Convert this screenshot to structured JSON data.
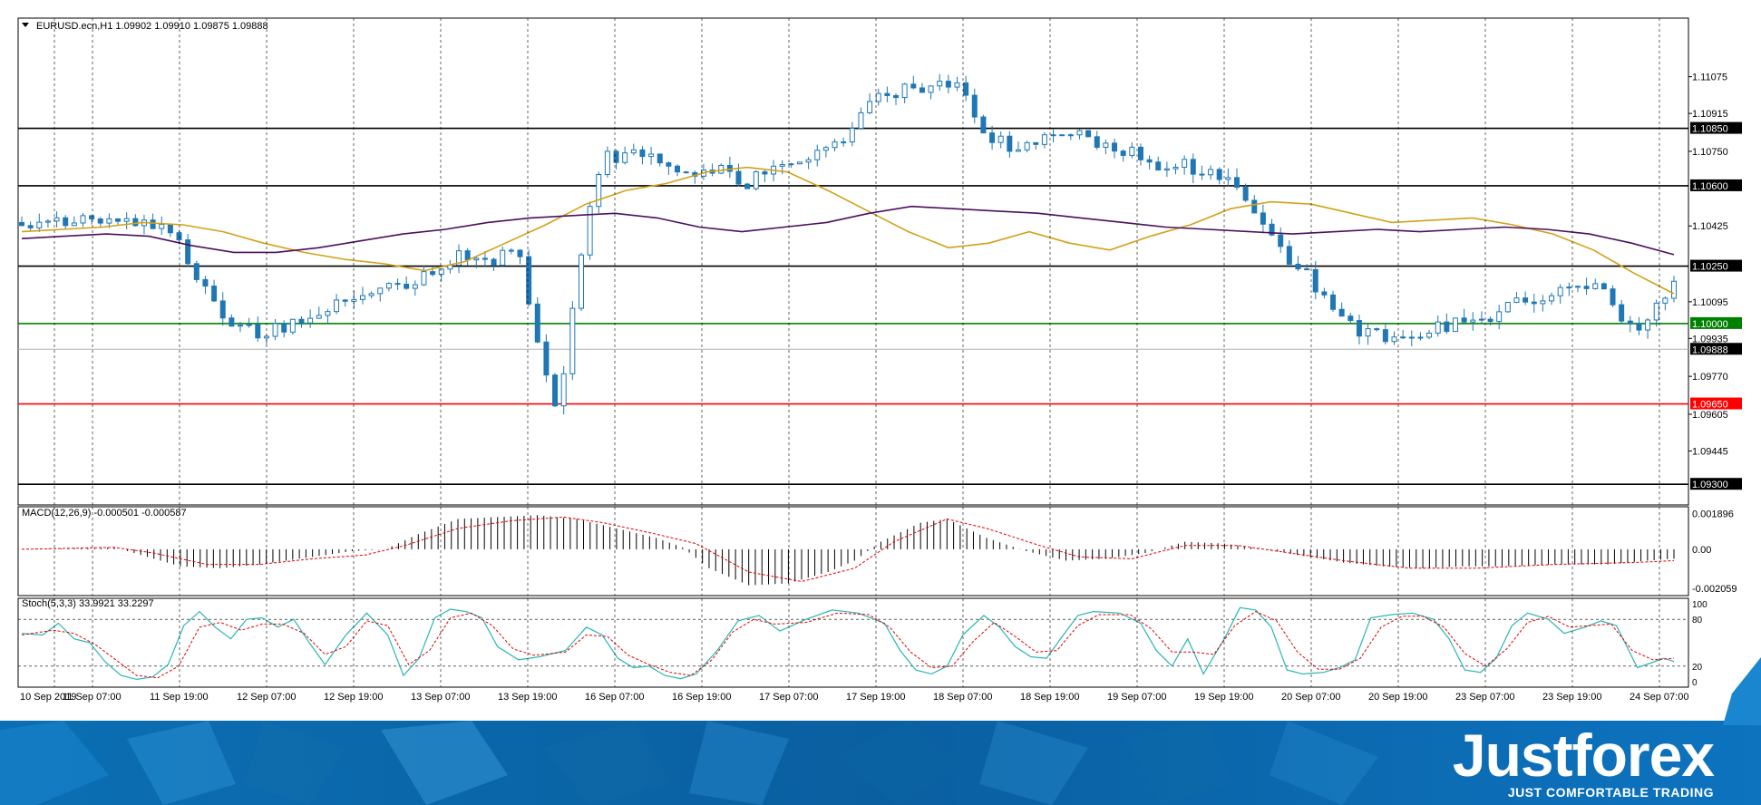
{
  "header": {
    "symbol_line": "EURUSD.ecn,H1  1.09902 1.09910 1.09875 1.09888"
  },
  "chart_data": {
    "type": "candlestick",
    "price_axis": {
      "range": [
        1.0921,
        1.1133
      ],
      "ticks": [
        "1.11075",
        "1.10915",
        "1.10750",
        "1.10425",
        "1.10095",
        "1.09935",
        "1.09770",
        "1.09605",
        "1.09445"
      ]
    },
    "levels": [
      {
        "value": 1.1085,
        "label": "1.10850",
        "color": "#000000"
      },
      {
        "value": 1.106,
        "label": "1.10600",
        "color": "#000000"
      },
      {
        "value": 1.1025,
        "label": "1.10250",
        "color": "#000000"
      },
      {
        "value": 1.1,
        "label": "1.10000",
        "color": "#008000"
      },
      {
        "value": 1.0965,
        "label": "1.09650",
        "color": "#ff0000"
      },
      {
        "value": 1.093,
        "label": "1.09300",
        "color": "#000000"
      }
    ],
    "current_price": {
      "value": 1.09888,
      "label": "1.09888"
    },
    "candle_count": 190,
    "candle_anchors": [
      [
        0,
        1.1044
      ],
      [
        10,
        1.1046
      ],
      [
        16,
        1.1041
      ],
      [
        19,
        1.1018
      ],
      [
        22,
        1.1
      ],
      [
        26,
        1.0995
      ],
      [
        31,
        1.1005
      ],
      [
        36,
        1.1012
      ],
      [
        40,
        1.1016
      ],
      [
        44,
        1.1023
      ],
      [
        47,
        1.103
      ],
      [
        50,
        1.1027
      ],
      [
        53,
        1.1033
      ],
      [
        55,
        1.0988
      ],
      [
        57,
        1.0964
      ],
      [
        58,
        1.0986
      ],
      [
        60,
        1.104
      ],
      [
        62,
        1.1073
      ],
      [
        64,
        1.1072
      ],
      [
        66,
        1.1074
      ],
      [
        68,
        1.107
      ],
      [
        72,
        1.1066
      ],
      [
        75,
        1.1068
      ],
      [
        77,
        1.1061
      ],
      [
        80,
        1.1068
      ],
      [
        84,
        1.1072
      ],
      [
        87,
        1.1077
      ],
      [
        89,
        1.1087
      ],
      [
        91,
        1.1099
      ],
      [
        94,
        1.1102
      ],
      [
        97,
        1.1102
      ],
      [
        98,
        1.1108
      ],
      [
        100,
        1.1102
      ],
      [
        102,
        1.1085
      ],
      [
        105,
        1.1077
      ],
      [
        108,
        1.1077
      ],
      [
        111,
        1.1085
      ],
      [
        114,
        1.1079
      ],
      [
        118,
        1.1075
      ],
      [
        121,
        1.1068
      ],
      [
        123,
        1.1071
      ],
      [
        126,
        1.1066
      ],
      [
        129,
        1.106
      ],
      [
        131,
        1.1053
      ],
      [
        134,
        1.1031
      ],
      [
        137,
        1.1021
      ],
      [
        140,
        1.1005
      ],
      [
        143,
        1.0995
      ],
      [
        147,
        1.0993
      ],
      [
        150,
        1.0998
      ],
      [
        154,
        1.1001
      ],
      [
        157,
        1.1004
      ],
      [
        160,
        1.101
      ],
      [
        163,
        1.1012
      ],
      [
        166,
        1.1015
      ],
      [
        168,
        1.1019
      ],
      [
        171,
        1.0999
      ],
      [
        173,
        1.0998
      ],
      [
        176,
        1.1019
      ]
    ],
    "x_axis_labels": [
      "10 Sep 2019",
      "11 Sep 07:00",
      "11 Sep 19:00",
      "12 Sep 07:00",
      "12 Sep 19:00",
      "13 Sep 07:00",
      "13 Sep 19:00",
      "16 Sep 07:00",
      "16 Sep 19:00",
      "17 Sep 07:00",
      "17 Sep 19:00",
      "18 Sep 07:00",
      "18 Sep 19:00",
      "19 Sep 07:00",
      "19 Sep 19:00",
      "20 Sep 07:00",
      "20 Sep 19:00",
      "23 Sep 07:00",
      "23 Sep 19:00",
      "24 Sep 07:00"
    ],
    "moving_averages": [
      {
        "color": "#d4a017",
        "values": [
          1.104,
          1.1041,
          1.1042,
          1.1044,
          1.1043,
          1.104,
          1.1035,
          1.1031,
          1.1028,
          1.1026,
          1.1023,
          1.1027,
          1.1035,
          1.1043,
          1.1052,
          1.1058,
          1.1061,
          1.1066,
          1.1068,
          1.1066,
          1.1058,
          1.1049,
          1.104,
          1.1033,
          1.1035,
          1.104,
          1.1035,
          1.1032,
          1.1038,
          1.1043,
          1.105,
          1.1053,
          1.1052,
          1.1048,
          1.1044,
          1.1045,
          1.1046,
          1.1043,
          1.1039,
          1.1032,
          1.1022,
          1.1013
        ]
      },
      {
        "color": "#4b0f5e",
        "values": [
          1.1037,
          1.1038,
          1.1039,
          1.1038,
          1.1034,
          1.1031,
          1.1031,
          1.1033,
          1.1036,
          1.1039,
          1.1041,
          1.1044,
          1.1046,
          1.1047,
          1.1048,
          1.1046,
          1.1042,
          1.104,
          1.1042,
          1.1044,
          1.1048,
          1.1051,
          1.105,
          1.1049,
          1.1048,
          1.1046,
          1.1044,
          1.1042,
          1.1041,
          1.104,
          1.1039,
          1.104,
          1.1041,
          1.104,
          1.1041,
          1.1042,
          1.1041,
          1.1039,
          1.1035,
          1.103
        ]
      }
    ],
    "macd": {
      "label": "MACD(12,26,9) -0.000501 -0.000587",
      "ticks": [
        "0.001896",
        "0.00",
        "-0.002059"
      ],
      "range": [
        -0.0023,
        0.0021
      ],
      "histogram_anchors": [
        [
          0,
          0.0
        ],
        [
          14,
          0.0001
        ],
        [
          18,
          -0.0003
        ],
        [
          24,
          -0.0009
        ],
        [
          30,
          -0.001
        ],
        [
          36,
          -0.0008
        ],
        [
          44,
          -0.0004
        ],
        [
          50,
          -0.0001
        ],
        [
          55,
          0.0
        ],
        [
          60,
          0.0008
        ],
        [
          66,
          0.0016
        ],
        [
          72,
          0.0017
        ],
        [
          78,
          0.0018
        ],
        [
          84,
          0.0016
        ],
        [
          90,
          0.0011
        ],
        [
          96,
          0.0006
        ],
        [
          100,
          0.0001
        ],
        [
          104,
          -0.001
        ],
        [
          110,
          -0.0019
        ],
        [
          116,
          -0.0018
        ],
        [
          122,
          -0.0012
        ],
        [
          126,
          -0.0006
        ],
        [
          130,
          0.0004
        ],
        [
          136,
          0.0014
        ],
        [
          140,
          0.0016
        ],
        [
          146,
          0.0006
        ],
        [
          152,
          -0.0001
        ],
        [
          158,
          -0.0006
        ],
        [
          164,
          -0.0005
        ],
        [
          170,
          -0.0002
        ],
        [
          176,
          0.0004
        ],
        [
          182,
          0.0003
        ],
        [
          188,
          0.0
        ],
        [
          193,
          -0.0003
        ],
        [
          200,
          -0.0007
        ],
        [
          206,
          -0.0009
        ],
        [
          212,
          -0.001
        ],
        [
          218,
          -0.0009
        ],
        [
          224,
          -0.0009
        ],
        [
          232,
          -0.0008
        ],
        [
          240,
          -0.0008
        ],
        [
          246,
          -0.0006
        ],
        [
          250,
          -0.0005
        ]
      ],
      "signal_anchors": [
        [
          0,
          0.0
        ],
        [
          14,
          0.0001
        ],
        [
          20,
          -0.0002
        ],
        [
          28,
          -0.0008
        ],
        [
          36,
          -0.0008
        ],
        [
          44,
          -0.0005
        ],
        [
          52,
          -0.0003
        ],
        [
          58,
          0.0002
        ],
        [
          66,
          0.0011
        ],
        [
          74,
          0.0015
        ],
        [
          82,
          0.0017
        ],
        [
          88,
          0.0014
        ],
        [
          96,
          0.0008
        ],
        [
          102,
          0.0003
        ],
        [
          110,
          -0.0012
        ],
        [
          118,
          -0.0017
        ],
        [
          126,
          -0.001
        ],
        [
          132,
          0.0004
        ],
        [
          140,
          0.0016
        ],
        [
          146,
          0.0011
        ],
        [
          154,
          0.0002
        ],
        [
          160,
          -0.0004
        ],
        [
          168,
          -0.0005
        ],
        [
          176,
          0.0002
        ],
        [
          184,
          0.0002
        ],
        [
          190,
          -0.0001
        ],
        [
          200,
          -0.0006
        ],
        [
          210,
          -0.001
        ],
        [
          220,
          -0.001
        ],
        [
          232,
          -0.0008
        ],
        [
          244,
          -0.0007
        ],
        [
          250,
          -0.0006
        ]
      ]
    },
    "stochastic": {
      "label": "Stoch(5,3,3) 33.9921 33.2297",
      "ticks": [
        "100",
        "80",
        "20",
        "0"
      ],
      "range": [
        0,
        100
      ],
      "main_anchors": [
        [
          0,
          62
        ],
        [
          4,
          60
        ],
        [
          7,
          75
        ],
        [
          10,
          55
        ],
        [
          13,
          50
        ],
        [
          16,
          25
        ],
        [
          19,
          8
        ],
        [
          22,
          3
        ],
        [
          25,
          6
        ],
        [
          28,
          22
        ],
        [
          31,
          72
        ],
        [
          34,
          90
        ],
        [
          37,
          70
        ],
        [
          40,
          55
        ],
        [
          43,
          80
        ],
        [
          46,
          82
        ],
        [
          49,
          70
        ],
        [
          52,
          80
        ],
        [
          55,
          50
        ],
        [
          58,
          22
        ],
        [
          62,
          60
        ],
        [
          66,
          88
        ],
        [
          70,
          60
        ],
        [
          73,
          8
        ],
        [
          76,
          30
        ],
        [
          79,
          82
        ],
        [
          82,
          93
        ],
        [
          85,
          90
        ],
        [
          88,
          82
        ],
        [
          91,
          45
        ],
        [
          95,
          28
        ],
        [
          99,
          32
        ],
        [
          104,
          40
        ],
        [
          108,
          70
        ],
        [
          111,
          60
        ],
        [
          114,
          30
        ],
        [
          117,
          18
        ],
        [
          120,
          20
        ],
        [
          123,
          8
        ],
        [
          126,
          4
        ],
        [
          129,
          10
        ],
        [
          133,
          40
        ],
        [
          137,
          78
        ],
        [
          141,
          85
        ],
        [
          145,
          65
        ],
        [
          150,
          80
        ],
        [
          155,
          92
        ],
        [
          160,
          88
        ],
        [
          165,
          75
        ],
        [
          168,
          40
        ],
        [
          171,
          15
        ],
        [
          174,
          10
        ],
        [
          177,
          20
        ],
        [
          180,
          60
        ],
        [
          184,
          85
        ],
        [
          187,
          70
        ],
        [
          190,
          45
        ],
        [
          193,
          32
        ],
        [
          196,
          30
        ],
        [
          199,
          58
        ],
        [
          202,
          85
        ],
        [
          205,
          90
        ],
        [
          210,
          88
        ],
        [
          214,
          75
        ],
        [
          217,
          40
        ],
        [
          220,
          20
        ],
        [
          223,
          55
        ],
        [
          226,
          10
        ],
        [
          230,
          55
        ],
        [
          233,
          95
        ],
        [
          236,
          92
        ],
        [
          239,
          70
        ],
        [
          242,
          15
        ],
        [
          245,
          10
        ],
        [
          249,
          12
        ],
        [
          252,
          18
        ],
        [
          255,
          28
        ],
        [
          258,
          82
        ],
        [
          262,
          86
        ],
        [
          266,
          88
        ],
        [
          270,
          80
        ],
        [
          273,
          55
        ],
        [
          276,
          15
        ],
        [
          279,
          12
        ],
        [
          282,
          30
        ],
        [
          285,
          72
        ],
        [
          288,
          88
        ],
        [
          292,
          80
        ],
        [
          295,
          62
        ],
        [
          299,
          70
        ],
        [
          302,
          78
        ],
        [
          305,
          72
        ],
        [
          309,
          18
        ],
        [
          312,
          25
        ],
        [
          314,
          30
        ],
        [
          316,
          26
        ]
      ],
      "signal_anchors": [
        [
          0,
          60
        ],
        [
          6,
          66
        ],
        [
          10,
          62
        ],
        [
          14,
          48
        ],
        [
          18,
          28
        ],
        [
          22,
          8
        ],
        [
          26,
          5
        ],
        [
          30,
          20
        ],
        [
          34,
          70
        ],
        [
          38,
          76
        ],
        [
          42,
          66
        ],
        [
          46,
          74
        ],
        [
          50,
          74
        ],
        [
          54,
          62
        ],
        [
          58,
          35
        ],
        [
          62,
          45
        ],
        [
          66,
          78
        ],
        [
          70,
          72
        ],
        [
          74,
          22
        ],
        [
          78,
          40
        ],
        [
          82,
          82
        ],
        [
          86,
          88
        ],
        [
          90,
          72
        ],
        [
          94,
          42
        ],
        [
          98,
          34
        ],
        [
          104,
          38
        ],
        [
          108,
          60
        ],
        [
          112,
          58
        ],
        [
          116,
          34
        ],
        [
          120,
          22
        ],
        [
          124,
          12
        ],
        [
          128,
          8
        ],
        [
          132,
          28
        ],
        [
          136,
          64
        ],
        [
          140,
          80
        ],
        [
          144,
          74
        ],
        [
          150,
          76
        ],
        [
          156,
          88
        ],
        [
          162,
          86
        ],
        [
          166,
          70
        ],
        [
          170,
          38
        ],
        [
          174,
          18
        ],
        [
          178,
          20
        ],
        [
          182,
          52
        ],
        [
          186,
          76
        ],
        [
          190,
          58
        ],
        [
          194,
          38
        ],
        [
          198,
          40
        ],
        [
          202,
          72
        ],
        [
          206,
          86
        ],
        [
          212,
          86
        ],
        [
          216,
          68
        ],
        [
          220,
          38
        ],
        [
          224,
          38
        ],
        [
          228,
          35
        ],
        [
          232,
          72
        ],
        [
          236,
          90
        ],
        [
          240,
          78
        ],
        [
          244,
          38
        ],
        [
          248,
          16
        ],
        [
          252,
          16
        ],
        [
          256,
          30
        ],
        [
          260,
          70
        ],
        [
          264,
          84
        ],
        [
          268,
          84
        ],
        [
          272,
          70
        ],
        [
          276,
          36
        ],
        [
          280,
          20
        ],
        [
          284,
          42
        ],
        [
          288,
          76
        ],
        [
          292,
          84
        ],
        [
          296,
          70
        ],
        [
          300,
          72
        ],
        [
          304,
          74
        ],
        [
          308,
          40
        ],
        [
          312,
          28
        ],
        [
          316,
          30
        ]
      ]
    }
  },
  "branding": {
    "logo": "Justforex",
    "tagline": "JUST COMFORTABLE TRADING"
  }
}
